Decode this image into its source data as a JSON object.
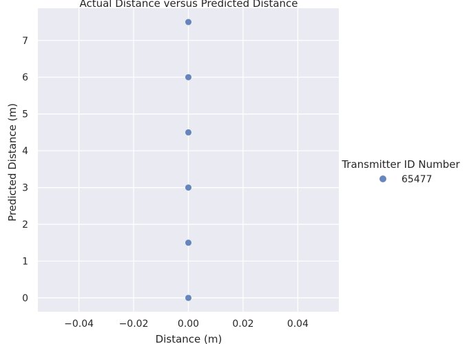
{
  "chart_data": {
    "type": "scatter",
    "title": "Actual Distance versus Predicted Distance",
    "xlabel": "Distance (m)",
    "ylabel": "Predicted Distance (m)",
    "xlim": [
      -0.055,
      0.055
    ],
    "ylim": [
      -0.375,
      7.875
    ],
    "x_ticks": [
      -0.04,
      -0.02,
      0.0,
      0.02,
      0.04
    ],
    "x_tick_labels": [
      "−0.04",
      "−0.02",
      "0.00",
      "0.02",
      "0.04"
    ],
    "y_ticks": [
      0,
      1,
      2,
      3,
      4,
      5,
      6,
      7
    ],
    "y_tick_labels": [
      "0",
      "1",
      "2",
      "3",
      "4",
      "5",
      "6",
      "7"
    ],
    "grid": true,
    "legend": {
      "title": "Transmitter ID Number",
      "placement": "right",
      "entries": [
        {
          "label": "65477",
          "color": "#4c72b0"
        }
      ]
    },
    "series": [
      {
        "name": "65477",
        "color": "#4c72b0",
        "points": [
          {
            "x": 0.0,
            "y": 7.5
          },
          {
            "x": 0.0,
            "y": 6.0
          },
          {
            "x": 0.0,
            "y": 4.5
          },
          {
            "x": 0.0,
            "y": 3.0
          },
          {
            "x": 0.0,
            "y": 1.5
          },
          {
            "x": 0.0,
            "y": 0.0
          }
        ]
      }
    ],
    "colors": {
      "plot_background": "#eaeaf2",
      "grid": "#ffffff"
    }
  }
}
